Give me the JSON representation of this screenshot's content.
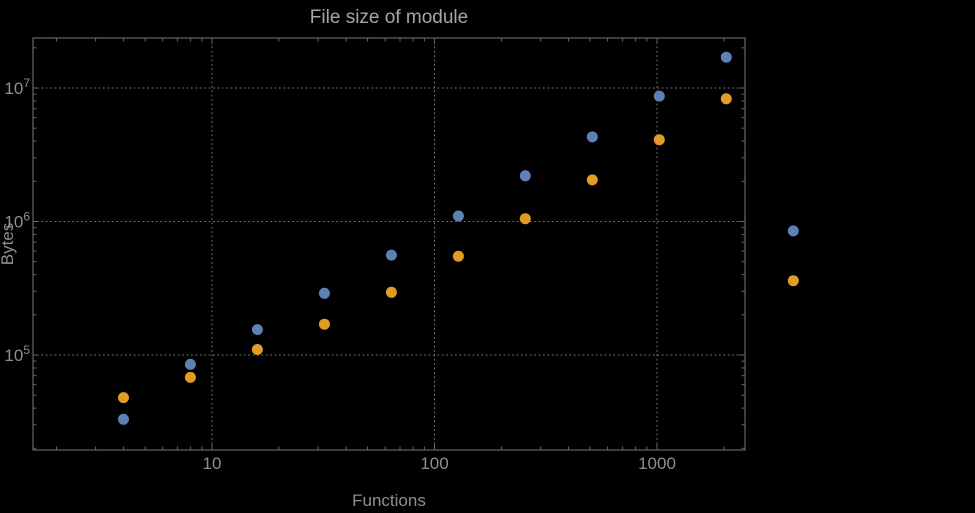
{
  "chart_data": {
    "type": "scatter",
    "title": "File size of module",
    "xlabel": "Functions",
    "ylabel": "Bytes",
    "x_scale": "log",
    "y_scale": "log",
    "grid": true,
    "legend": "none",
    "x_ticks": [
      10,
      100,
      1000
    ],
    "x_tick_labels": [
      "10",
      "100",
      "1000"
    ],
    "y_ticks": [
      100000,
      1000000,
      10000000
    ],
    "y_tick_exponents": [
      5,
      6,
      7
    ],
    "x_range_approx": [
      1.6,
      2480
    ],
    "y_range_approx": [
      19000,
      24000000
    ],
    "series": [
      {
        "name": "blue-series",
        "color": "#5e81b5",
        "points": [
          [
            4,
            33000
          ],
          [
            8,
            85000
          ],
          [
            16,
            155000
          ],
          [
            32,
            290000
          ],
          [
            64,
            560000
          ],
          [
            128,
            1100000
          ],
          [
            256,
            2200000
          ],
          [
            512,
            4300000
          ],
          [
            1024,
            8700000
          ],
          [
            2048,
            17000000
          ],
          [
            4096,
            850000
          ]
        ]
      },
      {
        "name": "orange-series",
        "color": "#e19c24",
        "points": [
          [
            4,
            48000
          ],
          [
            8,
            68000
          ],
          [
            16,
            110000
          ],
          [
            32,
            170000
          ],
          [
            64,
            295000
          ],
          [
            128,
            550000
          ],
          [
            256,
            1050000
          ],
          [
            512,
            2050000
          ],
          [
            1024,
            4100000
          ],
          [
            2048,
            8300000
          ],
          [
            4096,
            360000
          ]
        ]
      }
    ]
  },
  "colors": {
    "background": "#000000",
    "frame": "#666666",
    "grid": "#8c8c8c",
    "title_text": "#a6a6a6",
    "label_text": "#8f8f8f",
    "tick_text": "#8f8f8f",
    "point_blue": "#5e81b5",
    "point_orange": "#e19c24"
  }
}
